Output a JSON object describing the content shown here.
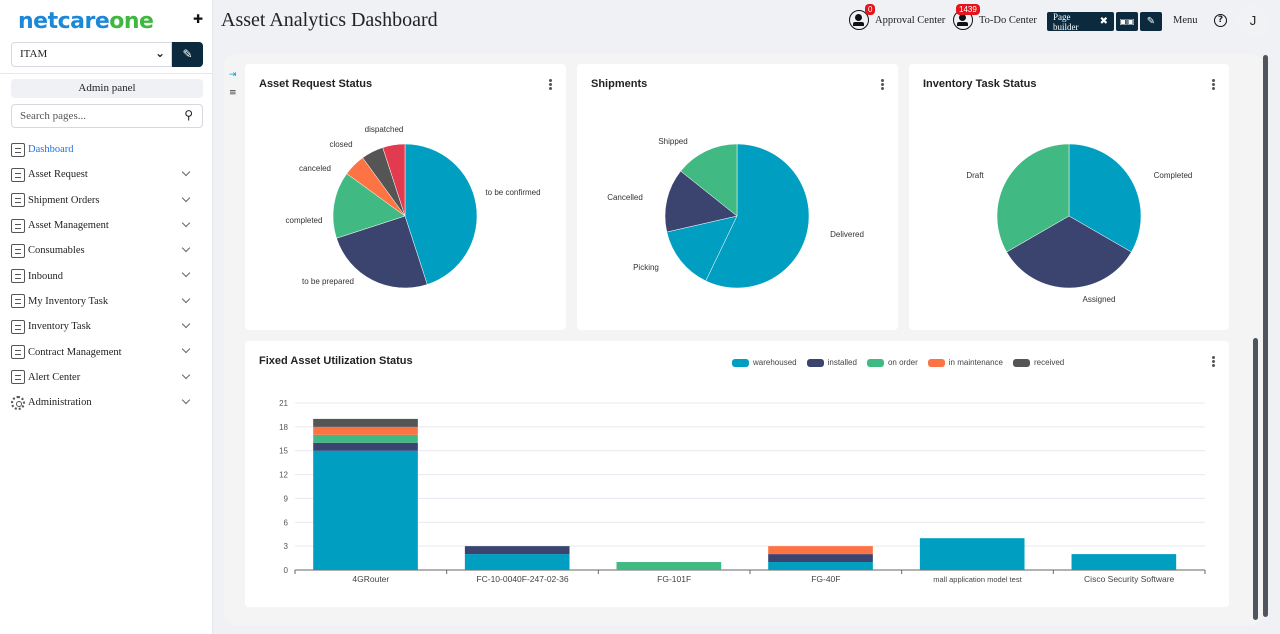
{
  "sidebar": {
    "logo_part1": "netcare",
    "logo_part2": "one",
    "pin_icon": "📌",
    "module_select": {
      "value": "ITAM"
    },
    "admin_panel_label": "Admin panel",
    "search": {
      "placeholder": "Search pages..."
    },
    "items": [
      {
        "label": "Dashboard",
        "icon": "dashboard-icon",
        "active": true,
        "expandable": false
      },
      {
        "label": "Asset Request",
        "icon": "asset-request-icon",
        "expandable": true
      },
      {
        "label": "Shipment Orders",
        "icon": "shipment-orders-icon",
        "expandable": true
      },
      {
        "label": "Asset Management",
        "icon": "asset-management-icon",
        "expandable": true
      },
      {
        "label": "Consumables",
        "icon": "consumables-icon",
        "expandable": true
      },
      {
        "label": "Inbound",
        "icon": "inbound-icon",
        "expandable": true
      },
      {
        "label": "My Inventory Task",
        "icon": "my-inventory-task-icon",
        "expandable": true
      },
      {
        "label": "Inventory Task",
        "icon": "inventory-task-icon",
        "expandable": true
      },
      {
        "label": "Contract Management",
        "icon": "contract-management-icon",
        "expandable": true
      },
      {
        "label": "Alert Center",
        "icon": "alert-center-icon",
        "expandable": true
      },
      {
        "label": "Administration",
        "icon": "gear-icon",
        "expandable": true
      }
    ]
  },
  "header": {
    "title": "Asset Analytics Dashboard",
    "approval_center": {
      "label": "Approval Center",
      "count": "0"
    },
    "todo_center": {
      "label": "To-Do Center",
      "count": "1439"
    },
    "page_builder_label": "Page builder",
    "menu_label": "Menu",
    "help_symbol": "?",
    "user_initial": "J"
  },
  "colors": {
    "teal": "#009fc1",
    "navy": "#3a446f",
    "green": "#40b983",
    "orange": "#fe7343",
    "gray": "#555555",
    "red": "#e23b4f",
    "dark_button": "#0c2a3e",
    "active_link": "#1a73e8"
  },
  "chart_data": [
    {
      "type": "pie",
      "title": "Asset Request Status",
      "labels": [
        "to be confirmed",
        "to be prepared",
        "completed",
        "canceled",
        "closed",
        "dispatched"
      ],
      "values": [
        9,
        5,
        3,
        1,
        1,
        1
      ],
      "colors": [
        "#009fc1",
        "#3a446f",
        "#40b983",
        "#fe7343",
        "#555555",
        "#e23b4f"
      ]
    },
    {
      "type": "pie",
      "title": "Shipments",
      "labels": [
        "Delivered",
        "Picking",
        "Cancelled",
        "Shipped"
      ],
      "values": [
        4,
        1,
        1,
        1
      ],
      "colors": [
        "#009fc1",
        "#009fc1",
        "#3a446f",
        "#40b983"
      ]
    },
    {
      "type": "pie",
      "title": "Inventory Task Status",
      "labels": [
        "Completed",
        "Assigned",
        "Draft"
      ],
      "values": [
        1,
        1,
        1
      ],
      "colors": [
        "#009fc1",
        "#3a446f",
        "#40b983"
      ]
    },
    {
      "type": "bar",
      "stacked": true,
      "title": "Fixed Asset Utilization Status",
      "categories": [
        "4GRouter",
        "FC-10-0040F-247-02-36",
        "FG-101F",
        "FG-40F",
        "mall application model test",
        "Cisco  Security Software"
      ],
      "series": [
        {
          "name": "warehoused",
          "color": "#009fc1",
          "values": [
            15,
            2,
            0,
            1,
            4,
            2
          ]
        },
        {
          "name": "installed",
          "color": "#3a446f",
          "values": [
            1,
            1,
            0,
            1,
            0,
            0
          ]
        },
        {
          "name": "on order",
          "color": "#40b983",
          "values": [
            1,
            0,
            1,
            0,
            0,
            0
          ]
        },
        {
          "name": "in maintenance",
          "color": "#fe7343",
          "values": [
            1,
            0,
            0,
            1,
            0,
            0
          ]
        },
        {
          "name": "received",
          "color": "#555555",
          "values": [
            1,
            0,
            0,
            0,
            0,
            0
          ]
        }
      ],
      "yticks": [
        0,
        3,
        6,
        9,
        12,
        15,
        18,
        21
      ],
      "ylim": [
        0,
        21
      ],
      "legend": "top-right",
      "grid": true
    }
  ]
}
